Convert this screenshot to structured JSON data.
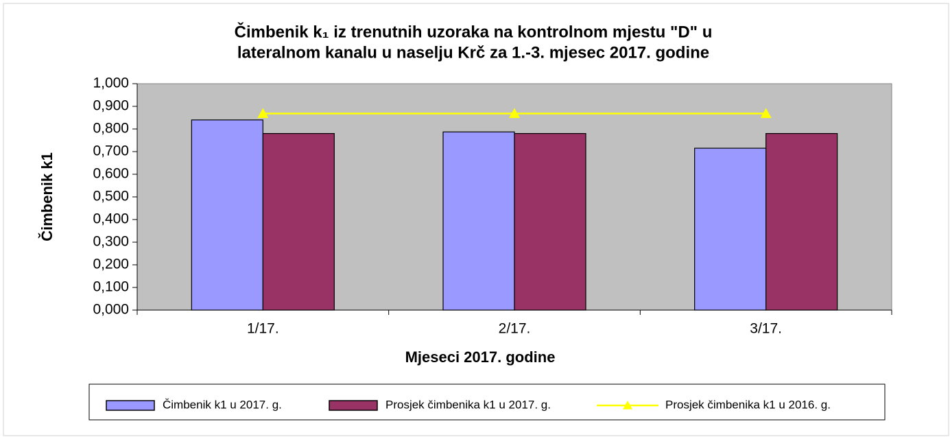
{
  "chart_data": {
    "type": "bar",
    "title": [
      "Čimbenik k₁ iz trenutnih uzoraka na kontrolnom mjestu \"D\" u",
      "lateralnom kanalu u naselju Krč za 1.-3. mjesec 2017. godine"
    ],
    "x_label": "Mjeseci  2017. godine",
    "y_label": "Čimbenik k1",
    "categories": [
      "1/17.",
      "2/17.",
      "3/17."
    ],
    "series": [
      {
        "name": "Čimbenik k1 u 2017. g.",
        "color": "#9999ff",
        "values": [
          0.84,
          0.787,
          0.715
        ]
      },
      {
        "name": "Prosjek čimbenika k1 u 2017. g.",
        "color": "#993366",
        "values": [
          0.78,
          0.78,
          0.78
        ]
      },
      {
        "name": "Prosjek čimbenika k1 u 2016. g.",
        "color": "#ffff00",
        "type": "line",
        "values": [
          0.868,
          0.868,
          0.868
        ]
      }
    ],
    "ylim": [
      0,
      1
    ],
    "yticks": [
      {
        "value": 0,
        "label": "0,000"
      },
      {
        "value": 0.1,
        "label": "0,100"
      },
      {
        "value": 0.2,
        "label": "0,200"
      },
      {
        "value": 0.3,
        "label": "0,300"
      },
      {
        "value": 0.4,
        "label": "0,400"
      },
      {
        "value": 0.5,
        "label": "0,500"
      },
      {
        "value": 0.6,
        "label": "0,600"
      },
      {
        "value": 0.7,
        "label": "0,700"
      },
      {
        "value": 0.8,
        "label": "0,800"
      },
      {
        "value": 0.9,
        "label": "0,900"
      },
      {
        "value": 1,
        "label": "1,000"
      }
    ],
    "plot_background": "#c0c0c0",
    "legend": "bottom"
  }
}
